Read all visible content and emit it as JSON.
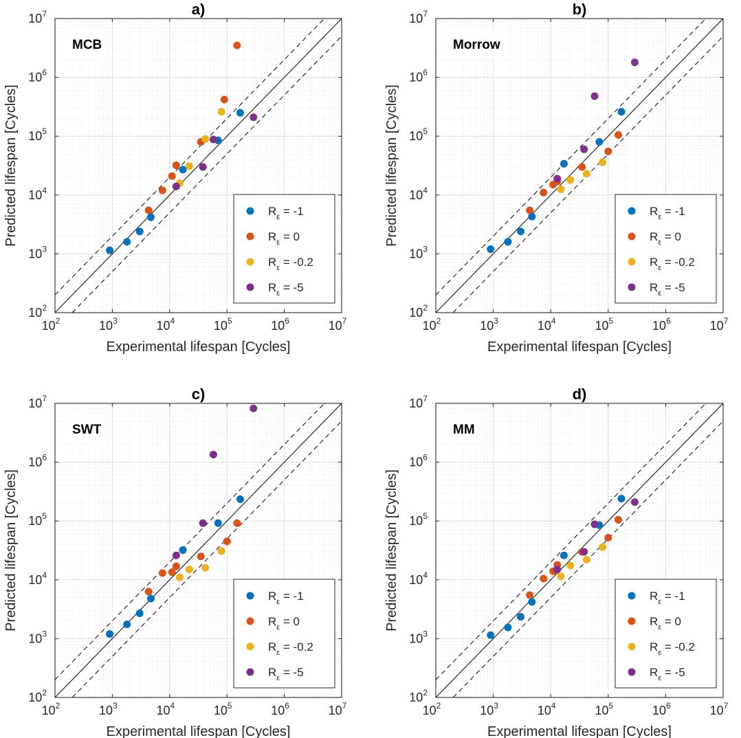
{
  "chart_data": [
    {
      "type": "scatter",
      "title": "a)",
      "method": "MCB",
      "xlabel": "Experimental lifespan [Cycles]",
      "ylabel": "Predicted lifespan [Cycles]",
      "xscale": "log",
      "yscale": "log",
      "xlim": [
        100,
        10000000
      ],
      "ylim": [
        100,
        10000000
      ],
      "ticks": [
        "10",
        "10",
        "10",
        "10",
        "10",
        "10"
      ],
      "tick_exponents": [
        "2",
        "3",
        "4",
        "5",
        "6",
        "7"
      ],
      "grid": true,
      "legend_position": "lower-right",
      "reference_lines": [
        "solid y = x",
        "dashed factor-of-2 bands"
      ],
      "series": [
        {
          "name_main": "R",
          "name_sub": "ε",
          "name_rest": " = -1",
          "color": "#0072BD",
          "points": [
            [
              900,
              1150
            ],
            [
              1800,
              1600
            ],
            [
              3000,
              2400
            ],
            [
              4700,
              4200
            ],
            [
              17000,
              27000
            ],
            [
              70000,
              85000
            ],
            [
              170000,
              250000
            ]
          ]
        },
        {
          "name_main": "R",
          "name_sub": "ε",
          "name_rest": " = 0",
          "color": "#D95319",
          "points": [
            [
              4300,
              5500
            ],
            [
              7500,
              12000
            ],
            [
              11000,
              21000
            ],
            [
              13000,
              32000
            ],
            [
              35000,
              80000
            ],
            [
              90000,
              420000
            ],
            [
              150000,
              3500000
            ]
          ]
        },
        {
          "name_main": "R",
          "name_sub": "ε",
          "name_rest": " = -0.2",
          "color": "#EDB120",
          "points": [
            [
              15000,
              16000
            ],
            [
              22000,
              31000
            ],
            [
              42000,
              90000
            ],
            [
              80000,
              260000
            ]
          ]
        },
        {
          "name_main": "R",
          "name_sub": "ε",
          "name_rest": " = -5",
          "color": "#7E2F8E",
          "points": [
            [
              13000,
              14000
            ],
            [
              38000,
              30000
            ],
            [
              58000,
              88000
            ],
            [
              290000,
              210000
            ]
          ]
        }
      ]
    },
    {
      "type": "scatter",
      "title": "b)",
      "method": "Morrow",
      "xlabel": "Experimental lifespan [Cycles]",
      "ylabel": "Predicted lifespan [Cycles]",
      "xscale": "log",
      "yscale": "log",
      "xlim": [
        100,
        10000000
      ],
      "ylim": [
        100,
        10000000
      ],
      "ticks": [
        "10",
        "10",
        "10",
        "10",
        "10",
        "10"
      ],
      "tick_exponents": [
        "2",
        "3",
        "4",
        "5",
        "6",
        "7"
      ],
      "grid": true,
      "legend_position": "lower-right",
      "reference_lines": [
        "solid y = x",
        "dashed factor-of-2 bands"
      ],
      "series": [
        {
          "name_main": "R",
          "name_sub": "ε",
          "name_rest": " = -1",
          "color": "#0072BD",
          "points": [
            [
              900,
              1200
            ],
            [
              1800,
              1600
            ],
            [
              3000,
              2400
            ],
            [
              4700,
              4300
            ],
            [
              17000,
              34000
            ],
            [
              70000,
              80000
            ],
            [
              170000,
              260000
            ]
          ]
        },
        {
          "name_main": "R",
          "name_sub": "ε",
          "name_rest": " = 0",
          "color": "#D95319",
          "points": [
            [
              4300,
              5500
            ],
            [
              7500,
              11000
            ],
            [
              11000,
              15000
            ],
            [
              13000,
              17000
            ],
            [
              35000,
              30000
            ],
            [
              100000,
              55000
            ],
            [
              150000,
              105000
            ]
          ]
        },
        {
          "name_main": "R",
          "name_sub": "ε",
          "name_rest": " = -0.2",
          "color": "#EDB120",
          "points": [
            [
              15000,
              12500
            ],
            [
              22000,
              18000
            ],
            [
              42000,
              23000
            ],
            [
              80000,
              36000
            ]
          ]
        },
        {
          "name_main": "R",
          "name_sub": "ε",
          "name_rest": " = -5",
          "color": "#7E2F8E",
          "points": [
            [
              13000,
              19000
            ],
            [
              38000,
              60000
            ],
            [
              58000,
              480000
            ],
            [
              290000,
              1800000
            ]
          ]
        }
      ]
    },
    {
      "type": "scatter",
      "title": "c)",
      "method": "SWT",
      "xlabel": "Experimental lifespan [Cycles]",
      "ylabel": "Predicted lifespan [Cycles]",
      "xscale": "log",
      "yscale": "log",
      "xlim": [
        100,
        10000000
      ],
      "ylim": [
        100,
        10000000
      ],
      "ticks": [
        "10",
        "10",
        "10",
        "10",
        "10",
        "10"
      ],
      "tick_exponents": [
        "2",
        "3",
        "4",
        "5",
        "6",
        "7"
      ],
      "grid": true,
      "legend_position": "lower-right",
      "reference_lines": [
        "solid y = x",
        "dashed factor-of-2 bands"
      ],
      "series": [
        {
          "name_main": "R",
          "name_sub": "ε",
          "name_rest": " = -1",
          "color": "#0072BD",
          "points": [
            [
              900,
              1200
            ],
            [
              1800,
              1750
            ],
            [
              3000,
              2700
            ],
            [
              4700,
              4800
            ],
            [
              17000,
              32000
            ],
            [
              70000,
              92000
            ],
            [
              170000,
              235000
            ]
          ]
        },
        {
          "name_main": "R",
          "name_sub": "ε",
          "name_rest": " = 0",
          "color": "#D95319",
          "points": [
            [
              4300,
              6300
            ],
            [
              7500,
              13000
            ],
            [
              11000,
              13500
            ],
            [
              13000,
              17000
            ],
            [
              35000,
              25000
            ],
            [
              100000,
              45000
            ],
            [
              150000,
              92000
            ]
          ]
        },
        {
          "name_main": "R",
          "name_sub": "ε",
          "name_rest": " = -0.2",
          "color": "#EDB120",
          "points": [
            [
              15000,
              11000
            ],
            [
              22000,
              15000
            ],
            [
              42000,
              16000
            ],
            [
              80000,
              31000
            ]
          ]
        },
        {
          "name_main": "R",
          "name_sub": "ε",
          "name_rest": " = -5",
          "color": "#7E2F8E",
          "points": [
            [
              13000,
              26000
            ],
            [
              38000,
              92000
            ],
            [
              58000,
              1350000
            ],
            [
              290000,
              8200000
            ]
          ]
        }
      ]
    },
    {
      "type": "scatter",
      "title": "d)",
      "method": "MM",
      "xlabel": "Experimental lifespan [Cycles]",
      "ylabel": "Predicted lifespan [Cycles]",
      "xscale": "log",
      "yscale": "log",
      "xlim": [
        100,
        10000000
      ],
      "ylim": [
        100,
        10000000
      ],
      "ticks": [
        "10",
        "10",
        "10",
        "10",
        "10",
        "10"
      ],
      "tick_exponents": [
        "2",
        "3",
        "4",
        "5",
        "6",
        "7"
      ],
      "grid": true,
      "legend_position": "lower-right",
      "reference_lines": [
        "solid y = x",
        "dashed factor-of-2 bands"
      ],
      "series": [
        {
          "name_main": "R",
          "name_sub": "ε",
          "name_rest": " = -1",
          "color": "#0072BD",
          "points": [
            [
              900,
              1150
            ],
            [
              1800,
              1550
            ],
            [
              3000,
              2350
            ],
            [
              4700,
              4200
            ],
            [
              17000,
              26000
            ],
            [
              70000,
              85000
            ],
            [
              170000,
              240000
            ]
          ]
        },
        {
          "name_main": "R",
          "name_sub": "ε",
          "name_rest": " = 0",
          "color": "#D95319",
          "points": [
            [
              4300,
              5500
            ],
            [
              7500,
              10500
            ],
            [
              11000,
              14000
            ],
            [
              13000,
              18000
            ],
            [
              35000,
              30000
            ],
            [
              100000,
              52000
            ],
            [
              150000,
              105000
            ]
          ]
        },
        {
          "name_main": "R",
          "name_sub": "ε",
          "name_rest": " = -0.2",
          "color": "#EDB120",
          "points": [
            [
              15000,
              11500
            ],
            [
              22000,
              17500
            ],
            [
              42000,
              22000
            ],
            [
              80000,
              36000
            ]
          ]
        },
        {
          "name_main": "R",
          "name_sub": "ε",
          "name_rest": " = -5",
          "color": "#7E2F8E",
          "points": [
            [
              13000,
              15000
            ],
            [
              38000,
              30000
            ],
            [
              58000,
              88000
            ],
            [
              290000,
              210000
            ]
          ]
        }
      ]
    }
  ]
}
